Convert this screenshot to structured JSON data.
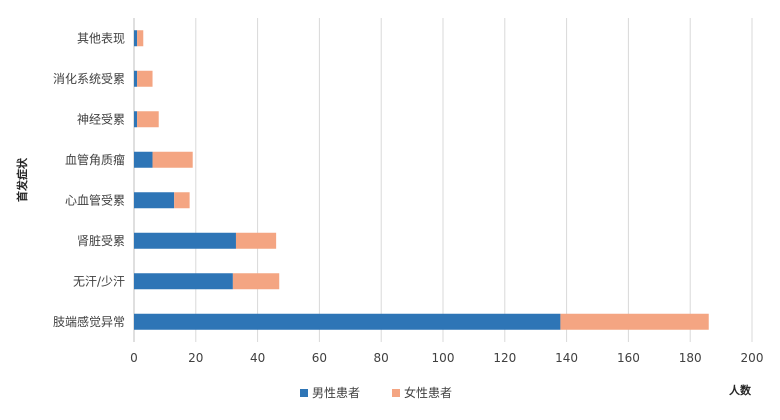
{
  "chart_data": {
    "type": "bar",
    "orientation": "horizontal",
    "stacked": true,
    "categories": [
      "其他表现",
      "消化系统受累",
      "神经受累",
      "血管角质瘤",
      "心血管受累",
      "肾脏受累",
      "无汗/少汗",
      "肢端感觉异常"
    ],
    "series": [
      {
        "name": "男性患者",
        "color": "#2e75b6",
        "values": [
          1,
          1,
          1,
          6,
          13,
          33,
          32,
          138
        ]
      },
      {
        "name": "女性患者",
        "color": "#f4a582",
        "values": [
          2,
          5,
          7,
          13,
          5,
          13,
          15,
          48
        ]
      }
    ],
    "xlabel": "人数",
    "ylabel": "首发症状",
    "xlim": [
      0,
      200
    ],
    "xticks": [
      0,
      20,
      40,
      60,
      80,
      100,
      120,
      140,
      160,
      180,
      200
    ],
    "grid": "vertical",
    "legend": "bottom"
  }
}
